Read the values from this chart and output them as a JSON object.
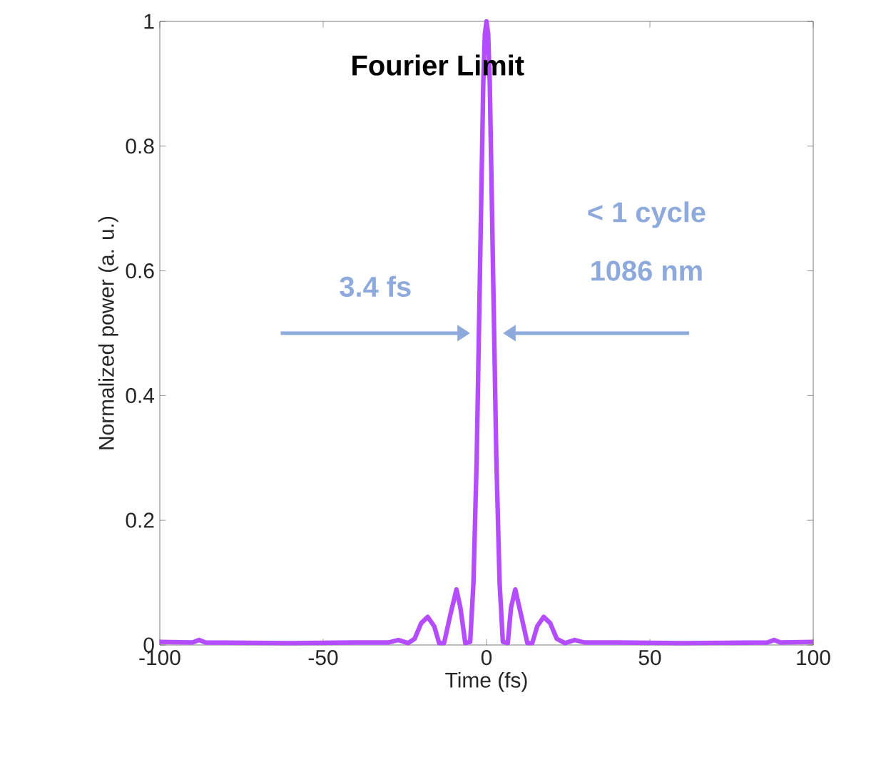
{
  "chart_data": {
    "type": "line",
    "title": "Fourier Limit",
    "xlabel": "Time (fs)",
    "ylabel": "Normalized power (a. u.)",
    "x": [
      -100,
      -90,
      -88,
      -86,
      -60,
      -40,
      -30,
      -27,
      -24,
      -22,
      -20,
      -18,
      -16,
      -14.5,
      -13,
      -11,
      -9.2,
      -8,
      -6.5,
      -5,
      -4,
      -3,
      -2,
      -1.5,
      -1,
      -0.5,
      0,
      0.5,
      1,
      1.5,
      2,
      3,
      4,
      5,
      6.5,
      7.5,
      8.8,
      10.5,
      12.5,
      14,
      15.5,
      17.5,
      19.5,
      21.5,
      24,
      27,
      30,
      40,
      60,
      86,
      88,
      90,
      100
    ],
    "series": [
      {
        "color": "#b44dff",
        "values": [
          0.005,
          0.004,
          0.008,
          0.004,
          0.003,
          0.004,
          0.004,
          0.008,
          0.003,
          0.01,
          0.035,
          0.045,
          0.03,
          0.003,
          0.003,
          0.05,
          0.089,
          0.06,
          0.003,
          0.005,
          0.1,
          0.3,
          0.6,
          0.75,
          0.9,
          0.98,
          1,
          0.98,
          0.9,
          0.75,
          0.6,
          0.3,
          0.1,
          0.005,
          0.003,
          0.06,
          0.089,
          0.05,
          0.003,
          0.003,
          0.03,
          0.045,
          0.035,
          0.01,
          0.003,
          0.008,
          0.004,
          0.004,
          0.003,
          0.004,
          0.008,
          0.004,
          0.005
        ]
      }
    ],
    "xlim": [
      -100,
      100
    ],
    "ylim": [
      0,
      1
    ],
    "xticks": [
      -100,
      -50,
      0,
      50,
      100
    ],
    "yticks": [
      0,
      0.2,
      0.4,
      0.6,
      0.8,
      1
    ],
    "annotations": [
      "3.4 fs",
      "< 1 cycle",
      "1086 nm"
    ],
    "grid": false,
    "marker": "none",
    "line_style": "solid"
  }
}
